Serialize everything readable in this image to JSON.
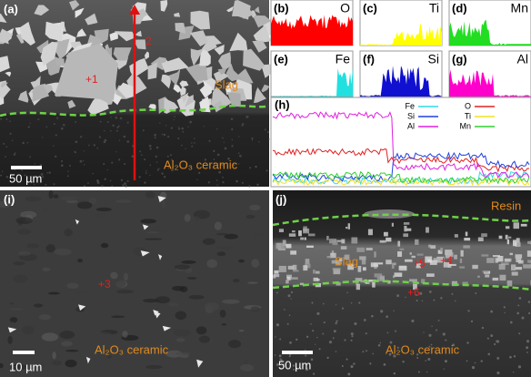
{
  "panels": {
    "a": {
      "label": "(a)",
      "point": "+1",
      "scan": "2",
      "slag": "Slag",
      "ceramic": "Al₂O₃ ceramic",
      "scale": "50 µm"
    },
    "eds": [
      {
        "label": "(b)",
        "element": "O",
        "color": "#ff0000"
      },
      {
        "label": "(c)",
        "element": "Ti",
        "color": "#ffff00"
      },
      {
        "label": "(d)",
        "element": "Mn",
        "color": "#22dd22"
      },
      {
        "label": "(e)",
        "element": "Fe",
        "color": "#22e0e0"
      },
      {
        "label": "(f)",
        "element": "Si",
        "color": "#1010d0"
      },
      {
        "label": "(g)",
        "element": "Al",
        "color": "#ff00cc"
      }
    ],
    "h": {
      "label": "(h)",
      "legend": [
        {
          "name": "Fe",
          "color": "#30d8e8"
        },
        {
          "name": "O",
          "color": "#e02020"
        },
        {
          "name": "Si",
          "color": "#2040e0"
        },
        {
          "name": "Ti",
          "color": "#f0e020"
        },
        {
          "name": "Al",
          "color": "#e020e0"
        },
        {
          "name": "Mn",
          "color": "#30d030"
        }
      ]
    },
    "i": {
      "label": "(i)",
      "point": "+3",
      "ceramic": "Al₂O₃ ceramic",
      "scale": "10 µm"
    },
    "j": {
      "label": "(j)",
      "resin": "Resin",
      "slag": "Slag",
      "p5": "+5",
      "p4": "+4",
      "p6": "+6",
      "ceramic": "Al₂O₃ ceramic",
      "scale": "50 µm"
    }
  }
}
